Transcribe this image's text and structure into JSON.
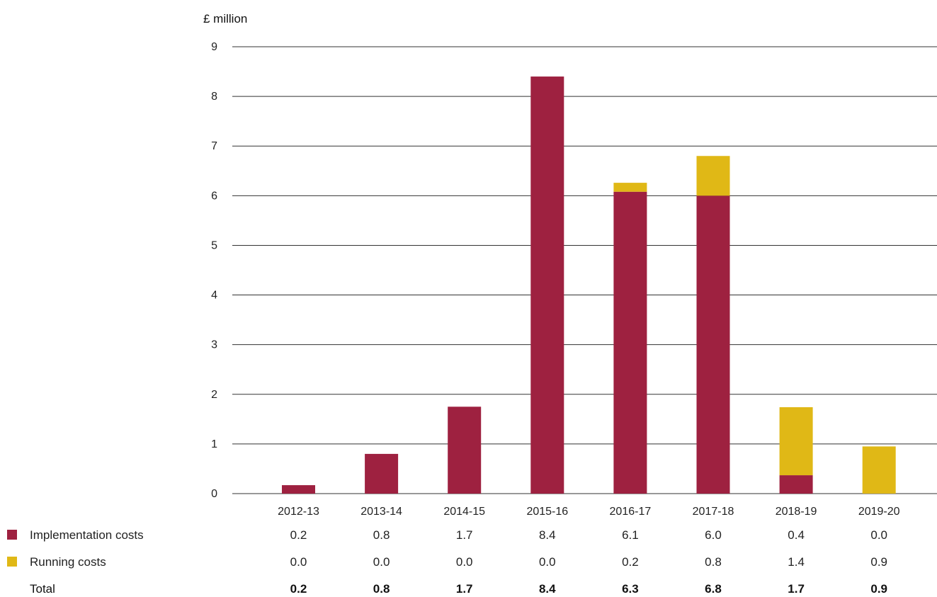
{
  "chart_data": {
    "type": "bar",
    "stacked": true,
    "ylabel": "£ million",
    "ylim": [
      0,
      9
    ],
    "yticks": [
      "0",
      "1",
      "2",
      "3",
      "4",
      "5",
      "6",
      "7",
      "8",
      "9"
    ],
    "categories": [
      "2012-13",
      "2013-14",
      "2014-15",
      "2015-16",
      "2016-17",
      "2017-18",
      "2018-19",
      "2019-20"
    ],
    "series": [
      {
        "name": "Implementation costs",
        "color": "#9e2140",
        "values": [
          0.17,
          0.8,
          1.75,
          8.4,
          6.08,
          6.0,
          0.37,
          0.0
        ],
        "labels": [
          "0.2",
          "0.8",
          "1.7",
          "8.4",
          "6.1",
          "6.0",
          "0.4",
          "0.0"
        ]
      },
      {
        "name": "Running costs",
        "color": "#e0b816",
        "values": [
          0.0,
          0.0,
          0.0,
          0.0,
          0.18,
          0.8,
          1.37,
          0.95
        ],
        "labels": [
          "0.0",
          "0.0",
          "0.0",
          "0.0",
          "0.2",
          "0.8",
          "1.4",
          "0.9"
        ]
      }
    ],
    "total": {
      "name": "Total",
      "labels": [
        "0.2",
        "0.8",
        "1.7",
        "8.4",
        "6.3",
        "6.8",
        "1.7",
        "0.9"
      ]
    },
    "grid": true,
    "legend": "bottom-left"
  }
}
